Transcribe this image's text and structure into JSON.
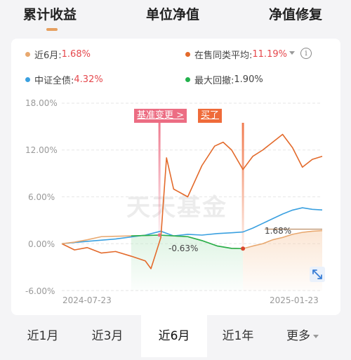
{
  "tabs": [
    {
      "label": "累计收益",
      "active": true
    },
    {
      "label": "单位净值",
      "active": false
    },
    {
      "label": "净值修复",
      "active": false
    }
  ],
  "legend": [
    {
      "label": "近6月:",
      "value": "1.68%",
      "color": "#e8a86f"
    },
    {
      "label": "在售同类平均:",
      "value": "11.19%",
      "color": "#e36a2b"
    },
    {
      "label": "中证全债:",
      "value": "4.32%",
      "color": "#3aa0e0"
    },
    {
      "label": "最大回撤:",
      "value": "1.90%",
      "color": "#22b14c"
    }
  ],
  "info_icon": "info-icon",
  "flags": {
    "benchmark_change": "基准变更 >",
    "bought": "买了"
  },
  "watermark": "天天基金",
  "chart_data": {
    "type": "line",
    "y_ticks": [
      "18.00%",
      "12.00%",
      "6.00%",
      "0.00%",
      "-6.00%"
    ],
    "ylim": [
      -6,
      18
    ],
    "x_ticks": [
      "2024-07-23",
      "2025-01-23"
    ],
    "x_range": [
      "2024-07-23",
      "2025-01-23"
    ],
    "annotations": [
      {
        "text": "1.68%",
        "x": "2025-01-23",
        "y": 1.68
      },
      {
        "text": "-0.63%",
        "x": "2024-11-28",
        "y": -0.63
      }
    ],
    "events": [
      {
        "label": "基准变更 >",
        "x": "2024-09-30"
      },
      {
        "label": "买了",
        "x": "2024-11-28"
      }
    ],
    "series": [
      {
        "name": "近6月",
        "color": "#e8a86f",
        "x": [
          "2024-07-23",
          "2024-08-01",
          "2024-08-10",
          "2024-08-20",
          "2024-08-30",
          "2024-09-10",
          "2024-09-20",
          "2024-09-30",
          "2024-10-10",
          "2024-10-20",
          "2024-10-30",
          "2024-11-10",
          "2024-11-20",
          "2024-11-28",
          "2024-12-05",
          "2024-12-12",
          "2024-12-19",
          "2024-12-26",
          "2025-01-02",
          "2025-01-09",
          "2025-01-16",
          "2025-01-23"
        ],
        "values": [
          0.0,
          0.2,
          0.5,
          0.9,
          0.95,
          1.0,
          1.05,
          1.1,
          1.0,
          0.9,
          0.4,
          -0.3,
          -0.6,
          -0.63,
          -0.3,
          0.0,
          0.5,
          0.8,
          1.2,
          1.45,
          1.6,
          1.68
        ]
      },
      {
        "name": "在售同类平均",
        "color": "#e36a2b",
        "x": [
          "2024-07-23",
          "2024-08-01",
          "2024-08-10",
          "2024-08-20",
          "2024-08-30",
          "2024-09-10",
          "2024-09-20",
          "2024-09-24",
          "2024-09-27",
          "2024-10-01",
          "2024-10-05",
          "2024-10-10",
          "2024-10-20",
          "2024-10-30",
          "2024-11-08",
          "2024-11-14",
          "2024-11-20",
          "2024-11-28",
          "2024-12-05",
          "2024-12-12",
          "2024-12-19",
          "2024-12-26",
          "2025-01-02",
          "2025-01-09",
          "2025-01-16",
          "2025-01-23"
        ],
        "values": [
          0.0,
          -0.8,
          -0.5,
          -1.2,
          -1.0,
          -1.6,
          -2.2,
          -3.2,
          -1.5,
          0.8,
          11.0,
          7.0,
          6.0,
          10.0,
          12.5,
          13.0,
          12.0,
          9.5,
          11.2,
          12.0,
          13.0,
          14.0,
          12.3,
          9.8,
          10.8,
          11.19
        ]
      },
      {
        "name": "中证全债",
        "color": "#3aa0e0",
        "x": [
          "2024-07-23",
          "2024-08-10",
          "2024-08-30",
          "2024-09-20",
          "2024-10-01",
          "2024-10-10",
          "2024-10-20",
          "2024-10-30",
          "2024-11-10",
          "2024-11-20",
          "2024-11-28",
          "2024-12-05",
          "2024-12-12",
          "2024-12-19",
          "2024-12-26",
          "2025-01-02",
          "2025-01-09",
          "2025-01-16",
          "2025-01-23"
        ],
        "values": [
          0.0,
          0.3,
          0.6,
          1.1,
          1.6,
          1.0,
          1.2,
          1.1,
          1.3,
          1.4,
          1.5,
          2.0,
          2.6,
          3.2,
          3.8,
          4.3,
          4.6,
          4.4,
          4.32
        ]
      },
      {
        "name": "最大回撤",
        "color": "#22b14c",
        "x": [
          "2024-09-10",
          "2024-09-20",
          "2024-09-30",
          "2024-10-10",
          "2024-10-20",
          "2024-10-30",
          "2024-11-10",
          "2024-11-20",
          "2024-11-28"
        ],
        "values": [
          1.0,
          1.05,
          1.1,
          1.0,
          0.9,
          0.4,
          -0.3,
          -0.6,
          -0.63
        ]
      }
    ]
  },
  "expand_icon": "expand-arrows-icon",
  "periods": [
    {
      "label": "近1月",
      "active": false
    },
    {
      "label": "近3月",
      "active": false
    },
    {
      "label": "近6月",
      "active": true
    },
    {
      "label": "近1年",
      "active": false
    },
    {
      "label": "更多",
      "active": false
    }
  ]
}
